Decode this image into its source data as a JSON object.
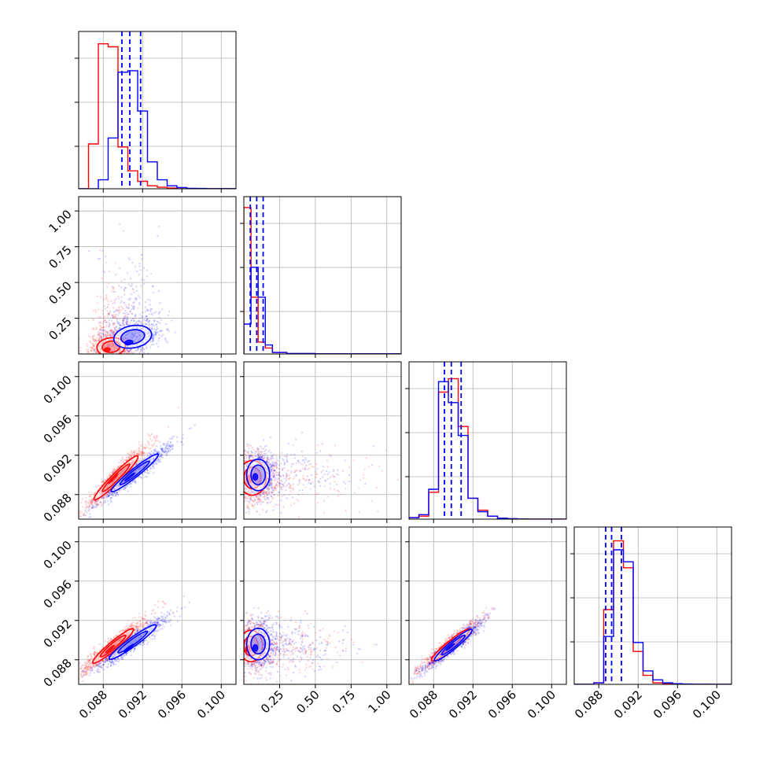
{
  "chart_data": {
    "type": "corner",
    "grid": true,
    "colors": {
      "series_a": "#ff0000",
      "series_b": "#0000ff"
    },
    "quantile_line_style": "dashed",
    "series": [
      {
        "color": "#0000ff"
      },
      {
        "color": "#ff0000"
      }
    ],
    "parameters": [
      {
        "range": [
          0.0855,
          0.1015
        ],
        "ticks": [
          0.088,
          0.092,
          0.096,
          0.1
        ],
        "tick_labels": [
          "0.088",
          "0.092",
          "0.096",
          "0.100"
        ]
      },
      {
        "range": [
          0.0,
          1.1
        ],
        "ticks": [
          0.25,
          0.5,
          0.75,
          1.0
        ],
        "tick_labels": [
          "0.25",
          "0.50",
          "0.75",
          "1.00"
        ]
      },
      {
        "range": [
          0.0855,
          0.1015
        ],
        "ticks": [
          0.088,
          0.092,
          0.096,
          0.1
        ],
        "tick_labels": [
          "0.088",
          "0.092",
          "0.096",
          "0.100"
        ]
      },
      {
        "range": [
          0.0855,
          0.1015
        ],
        "ticks": [
          0.088,
          0.092,
          0.096,
          0.1
        ],
        "tick_labels": [
          "0.088",
          "0.092",
          "0.096",
          "0.100"
        ]
      }
    ],
    "marginals": [
      {
        "bins": [
          0.0855,
          0.0865,
          0.0875,
          0.0885,
          0.0895,
          0.0905,
          0.0915,
          0.0925,
          0.0935,
          0.0945,
          0.0955,
          0.0965,
          0.0975,
          0.0985,
          0.0995,
          0.1005,
          0.1015
        ],
        "counts": {
          "red": [
            0.0,
            0.3,
            0.97,
            0.95,
            0.28,
            0.12,
            0.05,
            0.02,
            0.01,
            0.005,
            0,
            0,
            0,
            0,
            0,
            0
          ],
          "blue": [
            0.0,
            0.0,
            0.06,
            0.34,
            0.78,
            0.79,
            0.52,
            0.18,
            0.06,
            0.02,
            0.008,
            0.003,
            0.002,
            0.001,
            0.001,
            0.001
          ]
        },
        "quantiles_blue": [
          0.0899,
          0.0907,
          0.0918
        ]
      },
      {
        "bins": [
          0.0,
          0.05,
          0.1,
          0.15,
          0.2,
          0.3,
          0.5,
          1.1
        ],
        "counts": {
          "red": [
            0.98,
            0.38,
            0.08,
            0.04,
            0.01,
            0.003,
            0.001
          ],
          "blue": [
            0.2,
            0.58,
            0.38,
            0.06,
            0.01,
            0.003,
            0.001
          ]
        },
        "quantiles_blue": [
          0.045,
          0.09,
          0.135
        ]
      },
      {
        "bins": [
          0.0855,
          0.0865,
          0.0875,
          0.0885,
          0.0895,
          0.0905,
          0.0915,
          0.0925,
          0.0935,
          0.0945,
          0.0955,
          0.0965,
          0.0975,
          0.0985,
          0.0995,
          0.1005,
          0.1015
        ],
        "counts": {
          "red": [
            0.01,
            0.02,
            0.18,
            0.85,
            0.94,
            0.62,
            0.14,
            0.06,
            0.02,
            0.006,
            0.003,
            0.001,
            0,
            0,
            0,
            0
          ],
          "blue": [
            0.01,
            0.03,
            0.2,
            0.92,
            0.78,
            0.56,
            0.14,
            0.05,
            0.02,
            0.006,
            0.003,
            0.001,
            0,
            0,
            0,
            0
          ]
        },
        "quantiles_blue": [
          0.0891,
          0.0898,
          0.0908
        ]
      },
      {
        "bins": [
          0.0855,
          0.0865,
          0.0875,
          0.0885,
          0.0895,
          0.0905,
          0.0915,
          0.0925,
          0.0935,
          0.0945,
          0.0955,
          0.0965,
          0.0975,
          0.0985,
          0.0995,
          0.1005,
          0.1015
        ],
        "counts": {
          "red": [
            0.0,
            0.0,
            0.01,
            0.5,
            0.96,
            0.78,
            0.22,
            0.06,
            0.01,
            0.005,
            0.002,
            0.001,
            0,
            0,
            0,
            0
          ],
          "blue": [
            0.0,
            0.0,
            0.01,
            0.32,
            0.9,
            0.82,
            0.28,
            0.09,
            0.03,
            0.01,
            0.004,
            0.002,
            0.001,
            0.001,
            0,
            0
          ]
        },
        "quantiles_blue": [
          0.0887,
          0.0893,
          0.0903
        ]
      }
    ],
    "joint": [
      {
        "x_param": 0,
        "y_param": 1,
        "red": {
          "mean": [
            0.0888,
            0.05
          ],
          "sd": [
            0.0009,
            0.04
          ],
          "rho": 0.1,
          "core": [
            0.0884,
            0.03
          ]
        },
        "blue": {
          "mean": [
            0.091,
            0.12
          ],
          "sd": [
            0.0012,
            0.05
          ],
          "rho": 0.2,
          "core": [
            0.0906,
            0.08
          ]
        }
      },
      {
        "x_param": 0,
        "y_param": 2,
        "red": {
          "mean": [
            0.0893,
            0.0897
          ],
          "sd": [
            0.0014,
            0.0014
          ],
          "rho": 0.96,
          "core": [
            0.089,
            0.0896
          ]
        },
        "blue": {
          "mean": [
            0.0912,
            0.0902
          ],
          "sd": [
            0.0015,
            0.0012
          ],
          "rho": 0.96,
          "core": [
            0.0907,
            0.0898
          ]
        }
      },
      {
        "x_param": 1,
        "y_param": 2,
        "red": {
          "mean": [
            0.06,
            0.0897
          ],
          "sd": [
            0.06,
            0.0011
          ],
          "rho": 0.0,
          "core": [
            0.04,
            0.0896
          ]
        },
        "blue": {
          "mean": [
            0.1,
            0.09
          ],
          "sd": [
            0.05,
            0.001
          ],
          "rho": 0.0,
          "core": [
            0.08,
            0.0898
          ]
        }
      },
      {
        "x_param": 0,
        "y_param": 3,
        "red": {
          "mean": [
            0.089,
            0.0894
          ],
          "sd": [
            0.0013,
            0.0011
          ],
          "rho": 0.95,
          "core": [
            0.0887,
            0.0891
          ]
        },
        "blue": {
          "mean": [
            0.091,
            0.0898
          ],
          "sd": [
            0.0015,
            0.0011
          ],
          "rho": 0.95,
          "core": [
            0.0906,
            0.0892
          ]
        }
      },
      {
        "x_param": 1,
        "y_param": 3,
        "red": {
          "mean": [
            0.05,
            0.0894
          ],
          "sd": [
            0.05,
            0.001
          ],
          "rho": 0.0,
          "core": [
            0.03,
            0.0891
          ]
        },
        "blue": {
          "mean": [
            0.1,
            0.0896
          ],
          "sd": [
            0.05,
            0.001
          ],
          "rho": 0.0,
          "core": [
            0.08,
            0.0892
          ]
        }
      },
      {
        "x_param": 2,
        "y_param": 3,
        "red": {
          "mean": [
            0.0897,
            0.0895
          ],
          "sd": [
            0.0012,
            0.001
          ],
          "rho": 0.95,
          "core": [
            0.0895,
            0.0893
          ]
        },
        "blue": {
          "mean": [
            0.09,
            0.0895
          ],
          "sd": [
            0.0012,
            0.001
          ],
          "rho": 0.95,
          "core": [
            0.0897,
            0.0893
          ]
        }
      }
    ]
  }
}
